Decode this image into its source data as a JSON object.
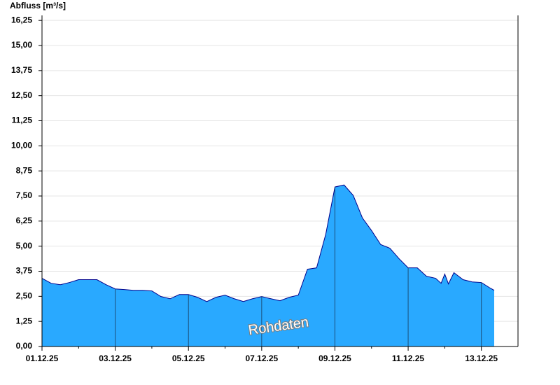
{
  "chart_data": {
    "type": "area",
    "y_label": "Abfluss [m³/s]",
    "annotation": "Rohdaten",
    "color": "#29a9ff",
    "line_color": "#00008b",
    "grid": true,
    "x": [
      0,
      0.25,
      0.5,
      0.75,
      1.0,
      1.25,
      1.5,
      1.75,
      2.0,
      2.25,
      2.5,
      2.75,
      3.0,
      3.25,
      3.5,
      3.75,
      4.0,
      4.25,
      4.5,
      4.75,
      5.0,
      5.25,
      5.5,
      5.75,
      6.0,
      6.25,
      6.5,
      6.75,
      7.0,
      7.25,
      7.5,
      7.75,
      8.0,
      8.25,
      8.5,
      8.75,
      9.0,
      9.25,
      9.5,
      9.75,
      10.0,
      10.25,
      10.5,
      10.75,
      10.9,
      11.0,
      11.1,
      11.25,
      11.5,
      11.75,
      12.0,
      12.25,
      12.35
    ],
    "values": [
      3.4,
      3.15,
      3.08,
      3.19,
      3.33,
      3.33,
      3.33,
      3.08,
      2.87,
      2.84,
      2.8,
      2.8,
      2.77,
      2.49,
      2.38,
      2.59,
      2.59,
      2.45,
      2.24,
      2.45,
      2.56,
      2.38,
      2.24,
      2.38,
      2.49,
      2.38,
      2.28,
      2.45,
      2.56,
      3.85,
      3.92,
      5.6,
      7.95,
      8.05,
      7.53,
      6.41,
      5.78,
      5.08,
      4.9,
      4.38,
      3.92,
      3.92,
      3.5,
      3.4,
      3.15,
      3.61,
      3.12,
      3.68,
      3.33,
      3.22,
      3.19,
      2.9,
      2.8
    ],
    "xlim": [
      0,
      13
    ],
    "xticks": [
      {
        "value": 0,
        "label": "01.12.25"
      },
      {
        "value": 2,
        "label": "03.12.25"
      },
      {
        "value": 4,
        "label": "05.12.25"
      },
      {
        "value": 6,
        "label": "07.12.25"
      },
      {
        "value": 8,
        "label": "09.12.25"
      },
      {
        "value": 10,
        "label": "11.12.25"
      },
      {
        "value": 12,
        "label": "13.12.25"
      }
    ],
    "ylim": [
      0,
      16.5
    ],
    "yticks": [
      {
        "value": 0,
        "label": "0,00"
      },
      {
        "value": 1.25,
        "label": "1,25"
      },
      {
        "value": 2.5,
        "label": "2,50"
      },
      {
        "value": 3.75,
        "label": "3,75"
      },
      {
        "value": 5,
        "label": "5,00"
      },
      {
        "value": 6.25,
        "label": "6,25"
      },
      {
        "value": 7.5,
        "label": "7,50"
      },
      {
        "value": 8.75,
        "label": "8,75"
      },
      {
        "value": 10,
        "label": "10,00"
      },
      {
        "value": 11.25,
        "label": "11,25"
      },
      {
        "value": 12.5,
        "label": "12,50"
      },
      {
        "value": 13.75,
        "label": "13,75"
      },
      {
        "value": 15,
        "label": "15,00"
      },
      {
        "value": 16.25,
        "label": "16,25"
      }
    ]
  }
}
